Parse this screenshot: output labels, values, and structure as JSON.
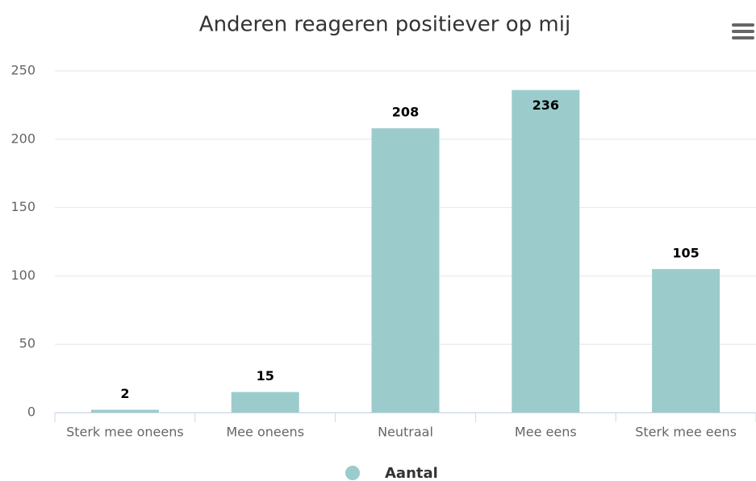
{
  "chart_data": {
    "type": "bar",
    "title": "Anderen reageren positiever op mij",
    "categories": [
      "Sterk mee oneens",
      "Mee oneens",
      "Neutraal",
      "Mee eens",
      "Sterk mee eens"
    ],
    "series": [
      {
        "name": "Aantal",
        "color": "#9bcccb",
        "values": [
          2,
          15,
          208,
          236,
          105
        ]
      }
    ],
    "ylim": [
      0,
      250
    ],
    "yticks": [
      0,
      50,
      100,
      150,
      200,
      250
    ],
    "grid": true,
    "legend": "bottom"
  }
}
